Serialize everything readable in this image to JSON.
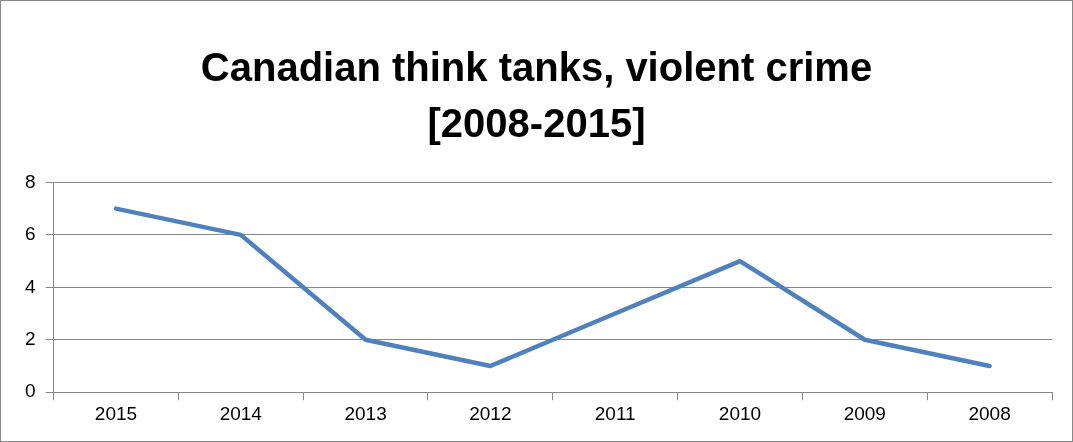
{
  "chart_data": {
    "type": "line",
    "title": "Canadian think tanks, violent crime [2008-2015]",
    "categories": [
      "2015",
      "2014",
      "2013",
      "2012",
      "2011",
      "2010",
      "2009",
      "2008"
    ],
    "series": [
      {
        "color": "#4f81bd",
        "values": [
          7,
          6,
          2,
          1,
          3,
          5,
          2,
          1
        ]
      }
    ],
    "ylim": [
      0,
      8
    ],
    "yticks": [
      0,
      2,
      4,
      6,
      8
    ],
    "grid": "y",
    "legend": false,
    "marker": "none",
    "line_style": "solid"
  }
}
